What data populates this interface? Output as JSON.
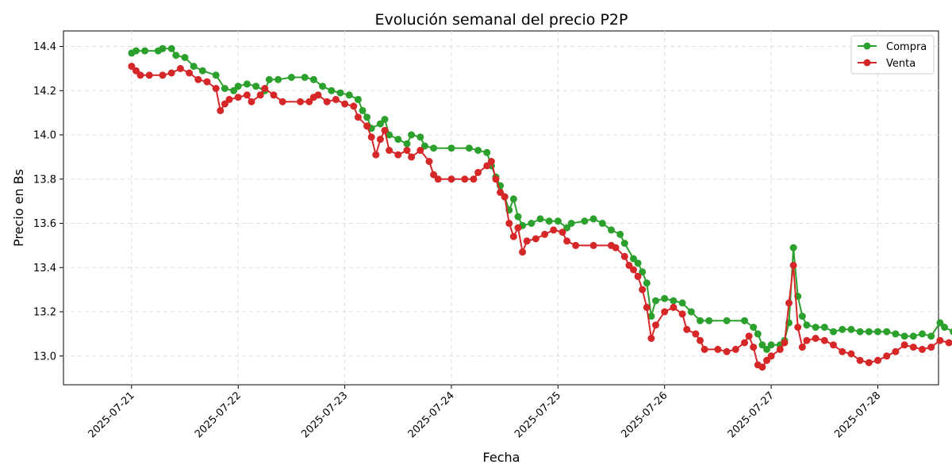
{
  "chart_data": {
    "type": "line",
    "title": "Evolución semanal del precio P2P",
    "xlabel": "Fecha",
    "ylabel": "Precio en Bs",
    "x_ticks": [
      "2025-07-21",
      "2025-07-22",
      "2025-07-23",
      "2025-07-24",
      "2025-07-25",
      "2025-07-26",
      "2025-07-27",
      "2025-07-28"
    ],
    "y_ticks": [
      "13.0",
      "13.2",
      "13.4",
      "13.6",
      "13.8",
      "14.0",
      "14.2",
      "14.4"
    ],
    "xlim": [
      "2025-07-20T08:40",
      "2025-07-28T13:40"
    ],
    "ylim": [
      12.87,
      14.47
    ],
    "grid": true,
    "legend_position": "top-right",
    "series": [
      {
        "name": "Compra",
        "color": "#2ca02c",
        "points": [
          [
            "2025-07-21T00:00",
            14.37
          ],
          [
            "2025-07-21T01:00",
            14.38
          ],
          [
            "2025-07-21T03:00",
            14.38
          ],
          [
            "2025-07-21T06:00",
            14.38
          ],
          [
            "2025-07-21T07:00",
            14.39
          ],
          [
            "2025-07-21T09:00",
            14.39
          ],
          [
            "2025-07-21T10:00",
            14.36
          ],
          [
            "2025-07-21T12:00",
            14.35
          ],
          [
            "2025-07-21T14:00",
            14.31
          ],
          [
            "2025-07-21T16:00",
            14.29
          ],
          [
            "2025-07-21T19:00",
            14.27
          ],
          [
            "2025-07-21T21:00",
            14.21
          ],
          [
            "2025-07-21T23:00",
            14.2
          ],
          [
            "2025-07-22T00:00",
            14.22
          ],
          [
            "2025-07-22T02:00",
            14.23
          ],
          [
            "2025-07-22T04:00",
            14.22
          ],
          [
            "2025-07-22T06:00",
            14.2
          ],
          [
            "2025-07-22T07:00",
            14.25
          ],
          [
            "2025-07-22T09:00",
            14.25
          ],
          [
            "2025-07-22T12:00",
            14.26
          ],
          [
            "2025-07-22T15:00",
            14.26
          ],
          [
            "2025-07-22T17:00",
            14.25
          ],
          [
            "2025-07-22T19:00",
            14.22
          ],
          [
            "2025-07-22T21:00",
            14.2
          ],
          [
            "2025-07-22T23:00",
            14.19
          ],
          [
            "2025-07-23T01:00",
            14.18
          ],
          [
            "2025-07-23T03:00",
            14.16
          ],
          [
            "2025-07-23T04:00",
            14.11
          ],
          [
            "2025-07-23T05:00",
            14.08
          ],
          [
            "2025-07-23T06:00",
            14.03
          ],
          [
            "2025-07-23T08:00",
            14.05
          ],
          [
            "2025-07-23T09:00",
            14.07
          ],
          [
            "2025-07-23T10:00",
            14.0
          ],
          [
            "2025-07-23T12:00",
            13.98
          ],
          [
            "2025-07-23T14:00",
            13.96
          ],
          [
            "2025-07-23T15:00",
            14.0
          ],
          [
            "2025-07-23T17:00",
            13.99
          ],
          [
            "2025-07-23T18:00",
            13.95
          ],
          [
            "2025-07-23T20:00",
            13.94
          ],
          [
            "2025-07-24T00:00",
            13.94
          ],
          [
            "2025-07-24T04:00",
            13.94
          ],
          [
            "2025-07-24T06:00",
            13.93
          ],
          [
            "2025-07-24T08:00",
            13.92
          ],
          [
            "2025-07-24T09:00",
            13.86
          ],
          [
            "2025-07-24T10:00",
            13.81
          ],
          [
            "2025-07-24T11:00",
            13.77
          ],
          [
            "2025-07-24T12:00",
            13.72
          ],
          [
            "2025-07-24T13:00",
            13.66
          ],
          [
            "2025-07-24T14:00",
            13.71
          ],
          [
            "2025-07-24T15:00",
            13.63
          ],
          [
            "2025-07-24T16:00",
            13.59
          ],
          [
            "2025-07-24T18:00",
            13.6
          ],
          [
            "2025-07-24T20:00",
            13.62
          ],
          [
            "2025-07-24T22:00",
            13.61
          ],
          [
            "2025-07-25T00:00",
            13.61
          ],
          [
            "2025-07-25T02:00",
            13.58
          ],
          [
            "2025-07-25T03:00",
            13.6
          ],
          [
            "2025-07-25T06:00",
            13.61
          ],
          [
            "2025-07-25T08:00",
            13.62
          ],
          [
            "2025-07-25T10:00",
            13.6
          ],
          [
            "2025-07-25T12:00",
            13.57
          ],
          [
            "2025-07-25T14:00",
            13.55
          ],
          [
            "2025-07-25T15:00",
            13.51
          ],
          [
            "2025-07-25T17:00",
            13.44
          ],
          [
            "2025-07-25T18:00",
            13.42
          ],
          [
            "2025-07-25T19:00",
            13.38
          ],
          [
            "2025-07-25T20:00",
            13.33
          ],
          [
            "2025-07-25T21:00",
            13.18
          ],
          [
            "2025-07-25T22:00",
            13.25
          ],
          [
            "2025-07-26T00:00",
            13.26
          ],
          [
            "2025-07-26T02:00",
            13.25
          ],
          [
            "2025-07-26T04:00",
            13.24
          ],
          [
            "2025-07-26T06:00",
            13.2
          ],
          [
            "2025-07-26T08:00",
            13.16
          ],
          [
            "2025-07-26T10:00",
            13.16
          ],
          [
            "2025-07-26T14:00",
            13.16
          ],
          [
            "2025-07-26T18:00",
            13.16
          ],
          [
            "2025-07-26T20:00",
            13.13
          ],
          [
            "2025-07-26T21:00",
            13.1
          ],
          [
            "2025-07-26T22:00",
            13.05
          ],
          [
            "2025-07-26T23:00",
            13.03
          ],
          [
            "2025-07-27T00:00",
            13.05
          ],
          [
            "2025-07-27T02:00",
            13.05
          ],
          [
            "2025-07-27T03:00",
            13.07
          ],
          [
            "2025-07-27T04:00",
            13.15
          ],
          [
            "2025-07-27T05:00",
            13.49
          ],
          [
            "2025-07-27T06:00",
            13.27
          ],
          [
            "2025-07-27T07:00",
            13.18
          ],
          [
            "2025-07-27T08:00",
            13.14
          ],
          [
            "2025-07-27T10:00",
            13.13
          ],
          [
            "2025-07-27T12:00",
            13.13
          ],
          [
            "2025-07-27T14:00",
            13.11
          ],
          [
            "2025-07-27T16:00",
            13.12
          ],
          [
            "2025-07-27T18:00",
            13.12
          ],
          [
            "2025-07-27T20:00",
            13.11
          ],
          [
            "2025-07-27T22:00",
            13.11
          ],
          [
            "2025-07-28T00:00",
            13.11
          ],
          [
            "2025-07-28T02:00",
            13.11
          ],
          [
            "2025-07-28T04:00",
            13.1
          ],
          [
            "2025-07-28T06:00",
            13.09
          ],
          [
            "2025-07-28T08:00",
            13.09
          ],
          [
            "2025-07-28T10:00",
            13.1
          ],
          [
            "2025-07-28T12:00",
            13.09
          ],
          [
            "2025-07-28T14:00",
            13.15
          ],
          [
            "2025-07-28T15:00",
            13.13
          ],
          [
            "2025-07-28T17:00",
            13.11
          ],
          [
            "2025-07-28T19:00",
            13.12
          ],
          [
            "2025-07-28T21:00",
            13.11
          ],
          [
            "2025-07-28T23:00",
            13.1
          ]
        ]
      },
      {
        "name": "Venta",
        "color": "#d62728",
        "points": [
          [
            "2025-07-21T00:00",
            14.31
          ],
          [
            "2025-07-21T01:00",
            14.29
          ],
          [
            "2025-07-21T02:00",
            14.27
          ],
          [
            "2025-07-21T04:00",
            14.27
          ],
          [
            "2025-07-21T07:00",
            14.27
          ],
          [
            "2025-07-21T09:00",
            14.28
          ],
          [
            "2025-07-21T11:00",
            14.3
          ],
          [
            "2025-07-21T13:00",
            14.28
          ],
          [
            "2025-07-21T15:00",
            14.25
          ],
          [
            "2025-07-21T17:00",
            14.24
          ],
          [
            "2025-07-21T19:00",
            14.21
          ],
          [
            "2025-07-21T20:00",
            14.11
          ],
          [
            "2025-07-21T21:00",
            14.14
          ],
          [
            "2025-07-21T22:00",
            14.16
          ],
          [
            "2025-07-22T00:00",
            14.17
          ],
          [
            "2025-07-22T02:00",
            14.18
          ],
          [
            "2025-07-22T03:00",
            14.15
          ],
          [
            "2025-07-22T05:00",
            14.18
          ],
          [
            "2025-07-22T06:00",
            14.21
          ],
          [
            "2025-07-22T08:00",
            14.18
          ],
          [
            "2025-07-22T10:00",
            14.15
          ],
          [
            "2025-07-22T14:00",
            14.15
          ],
          [
            "2025-07-22T16:00",
            14.15
          ],
          [
            "2025-07-22T17:00",
            14.17
          ],
          [
            "2025-07-22T18:00",
            14.18
          ],
          [
            "2025-07-22T20:00",
            14.15
          ],
          [
            "2025-07-22T22:00",
            14.16
          ],
          [
            "2025-07-23T00:00",
            14.14
          ],
          [
            "2025-07-23T02:00",
            14.13
          ],
          [
            "2025-07-23T03:00",
            14.08
          ],
          [
            "2025-07-23T05:00",
            14.04
          ],
          [
            "2025-07-23T06:00",
            13.99
          ],
          [
            "2025-07-23T07:00",
            13.91
          ],
          [
            "2025-07-23T08:00",
            13.98
          ],
          [
            "2025-07-23T09:00",
            14.02
          ],
          [
            "2025-07-23T10:00",
            13.93
          ],
          [
            "2025-07-23T12:00",
            13.91
          ],
          [
            "2025-07-23T14:00",
            13.93
          ],
          [
            "2025-07-23T15:00",
            13.9
          ],
          [
            "2025-07-23T17:00",
            13.93
          ],
          [
            "2025-07-23T19:00",
            13.88
          ],
          [
            "2025-07-23T20:00",
            13.82
          ],
          [
            "2025-07-23T21:00",
            13.8
          ],
          [
            "2025-07-24T00:00",
            13.8
          ],
          [
            "2025-07-24T03:00",
            13.8
          ],
          [
            "2025-07-24T05:00",
            13.8
          ],
          [
            "2025-07-24T06:00",
            13.83
          ],
          [
            "2025-07-24T08:00",
            13.86
          ],
          [
            "2025-07-24T09:00",
            13.88
          ],
          [
            "2025-07-24T10:00",
            13.8
          ],
          [
            "2025-07-24T11:00",
            13.74
          ],
          [
            "2025-07-24T12:00",
            13.72
          ],
          [
            "2025-07-24T13:00",
            13.6
          ],
          [
            "2025-07-24T14:00",
            13.54
          ],
          [
            "2025-07-24T15:00",
            13.58
          ],
          [
            "2025-07-24T16:00",
            13.47
          ],
          [
            "2025-07-24T17:00",
            13.52
          ],
          [
            "2025-07-24T19:00",
            13.53
          ],
          [
            "2025-07-24T21:00",
            13.55
          ],
          [
            "2025-07-24T23:00",
            13.57
          ],
          [
            "2025-07-25T01:00",
            13.56
          ],
          [
            "2025-07-25T02:00",
            13.52
          ],
          [
            "2025-07-25T04:00",
            13.5
          ],
          [
            "2025-07-25T08:00",
            13.5
          ],
          [
            "2025-07-25T12:00",
            13.5
          ],
          [
            "2025-07-25T13:00",
            13.49
          ],
          [
            "2025-07-25T15:00",
            13.45
          ],
          [
            "2025-07-25T16:00",
            13.41
          ],
          [
            "2025-07-25T17:00",
            13.39
          ],
          [
            "2025-07-25T18:00",
            13.36
          ],
          [
            "2025-07-25T19:00",
            13.3
          ],
          [
            "2025-07-25T20:00",
            13.22
          ],
          [
            "2025-07-25T21:00",
            13.08
          ],
          [
            "2025-07-25T22:00",
            13.14
          ],
          [
            "2025-07-26T00:00",
            13.2
          ],
          [
            "2025-07-26T02:00",
            13.22
          ],
          [
            "2025-07-26T04:00",
            13.19
          ],
          [
            "2025-07-26T05:00",
            13.12
          ],
          [
            "2025-07-26T07:00",
            13.1
          ],
          [
            "2025-07-26T08:00",
            13.07
          ],
          [
            "2025-07-26T09:00",
            13.03
          ],
          [
            "2025-07-26T12:00",
            13.03
          ],
          [
            "2025-07-26T14:00",
            13.02
          ],
          [
            "2025-07-26T16:00",
            13.03
          ],
          [
            "2025-07-26T18:00",
            13.06
          ],
          [
            "2025-07-26T19:00",
            13.09
          ],
          [
            "2025-07-26T20:00",
            13.04
          ],
          [
            "2025-07-26T21:00",
            12.96
          ],
          [
            "2025-07-26T22:00",
            12.95
          ],
          [
            "2025-07-26T23:00",
            12.98
          ],
          [
            "2025-07-27T00:00",
            13.0
          ],
          [
            "2025-07-27T02:00",
            13.03
          ],
          [
            "2025-07-27T03:00",
            13.06
          ],
          [
            "2025-07-27T04:00",
            13.24
          ],
          [
            "2025-07-27T05:00",
            13.41
          ],
          [
            "2025-07-27T06:00",
            13.13
          ],
          [
            "2025-07-27T07:00",
            13.04
          ],
          [
            "2025-07-27T08:00",
            13.07
          ],
          [
            "2025-07-27T10:00",
            13.08
          ],
          [
            "2025-07-27T12:00",
            13.07
          ],
          [
            "2025-07-27T14:00",
            13.05
          ],
          [
            "2025-07-27T16:00",
            13.02
          ],
          [
            "2025-07-27T18:00",
            13.01
          ],
          [
            "2025-07-27T20:00",
            12.98
          ],
          [
            "2025-07-27T22:00",
            12.97
          ],
          [
            "2025-07-28T00:00",
            12.98
          ],
          [
            "2025-07-28T02:00",
            13.0
          ],
          [
            "2025-07-28T04:00",
            13.02
          ],
          [
            "2025-07-28T06:00",
            13.05
          ],
          [
            "2025-07-28T08:00",
            13.04
          ],
          [
            "2025-07-28T10:00",
            13.03
          ],
          [
            "2025-07-28T12:00",
            13.04
          ],
          [
            "2025-07-28T14:00",
            13.07
          ],
          [
            "2025-07-28T16:00",
            13.06
          ],
          [
            "2025-07-28T18:00",
            13.05
          ],
          [
            "2025-07-28T20:00",
            13.06
          ],
          [
            "2025-07-28T22:00",
            13.08
          ]
        ]
      }
    ]
  }
}
